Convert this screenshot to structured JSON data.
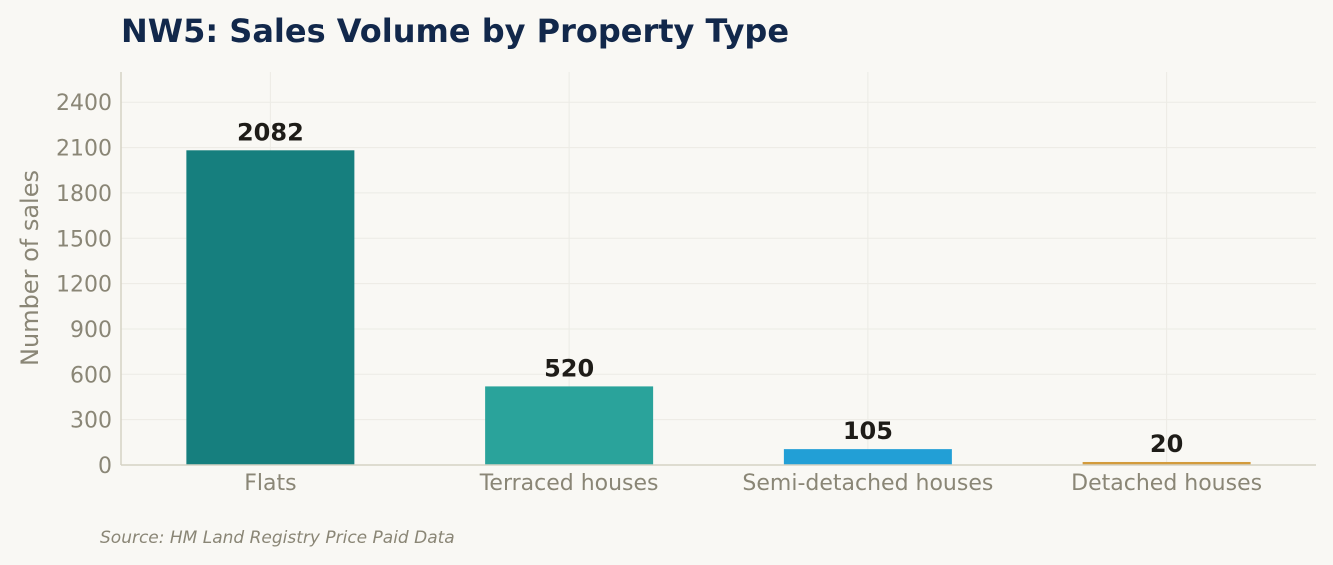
{
  "chart_data": {
    "type": "bar",
    "title": "NW5: Sales Volume by Property Type",
    "xlabel": "",
    "ylabel": "Number of sales",
    "categories": [
      "Flats",
      "Terraced houses",
      "Semi-detached houses",
      "Detached houses"
    ],
    "values": [
      2082,
      520,
      105,
      20
    ],
    "value_labels": [
      "2082",
      "520",
      "105",
      "20"
    ],
    "colors": [
      "#167f7e",
      "#2aa39b",
      "#229fd6",
      "#d39b3c"
    ],
    "ylim": [
      0,
      2600
    ],
    "yticks": [
      0,
      300,
      600,
      900,
      1200,
      1500,
      1800,
      2100,
      2400
    ],
    "grid": true,
    "legend": "none",
    "source": "Source: HM Land Registry Price Paid Data"
  }
}
